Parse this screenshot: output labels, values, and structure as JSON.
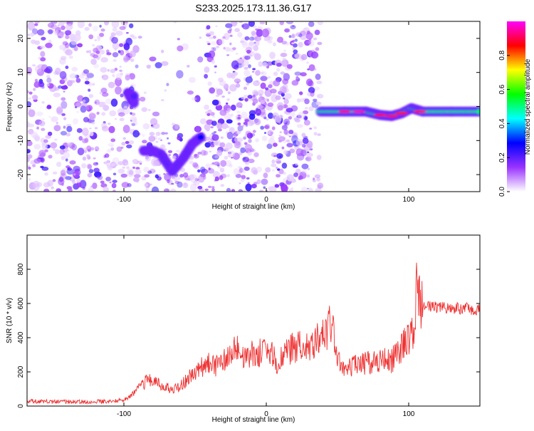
{
  "title": "S233.2025.173.11.36.G17",
  "chart_data": [
    {
      "type": "heatmap",
      "xlabel": "Height of straight line (km)",
      "ylabel": "Frequency (Hz)",
      "xlim": [
        -168,
        150
      ],
      "ylim": [
        -25,
        25
      ],
      "xticks": [
        -100,
        0,
        100
      ],
      "yticks": [
        -20,
        -10,
        0,
        10,
        20
      ],
      "colorbar": {
        "label": "Normalized spectral amplitude",
        "range": [
          0,
          1
        ],
        "ticks": [
          0.0,
          0.2,
          0.4,
          0.6,
          0.8
        ],
        "colormap": [
          "#ffffff",
          "#9933ff",
          "#0000ff",
          "#00ffff",
          "#00ff00",
          "#ffff00",
          "#ff0000",
          "#ff00ff"
        ]
      },
      "features": [
        {
          "type": "noise",
          "x": [
            -168,
            38
          ],
          "y": [
            -25,
            25
          ],
          "amplitude": 0.15
        },
        {
          "type": "ridge",
          "points": [
            [
              -93,
              1
            ],
            [
              -97,
              4
            ],
            [
              -93,
              3
            ]
          ],
          "amplitude": 0.3
        },
        {
          "type": "ridge",
          "points": [
            [
              -86,
              -13
            ],
            [
              -80,
              -13
            ],
            [
              -74,
              -14
            ],
            [
              -66,
              -19
            ],
            [
              -58,
              -15
            ],
            [
              -52,
              -11
            ],
            [
              -46,
              -9
            ]
          ],
          "amplitude": 0.4
        },
        {
          "type": "ridge",
          "points": [
            [
              38,
              -1.5
            ],
            [
              55,
              -1.5
            ],
            [
              70,
              -1.5
            ],
            [
              80,
              -2.5
            ],
            [
              88,
              -2.8
            ],
            [
              95,
              -2
            ],
            [
              102,
              -0.5
            ],
            [
              110,
              -1.5
            ],
            [
              130,
              -1.5
            ],
            [
              150,
              -1.5
            ]
          ],
          "amplitude": 0.95
        }
      ]
    },
    {
      "type": "line",
      "xlabel": "Height of straight line (km)",
      "ylabel": "SNR (10 * v/v)",
      "xlim": [
        -168,
        150
      ],
      "ylim": [
        0,
        1000
      ],
      "xticks": [
        -100,
        0,
        100
      ],
      "yticks": [
        0,
        200,
        400,
        600,
        800
      ],
      "color": "#ee3333",
      "x": [
        -168,
        -150,
        -130,
        -110,
        -100,
        -95,
        -90,
        -85,
        -82,
        -80,
        -75,
        -70,
        -65,
        -60,
        -55,
        -50,
        -45,
        -40,
        -35,
        -30,
        -25,
        -22,
        -20,
        -18,
        -15,
        -10,
        -5,
        0,
        5,
        8,
        10,
        15,
        20,
        25,
        30,
        35,
        40,
        43,
        45,
        48,
        50,
        55,
        60,
        65,
        70,
        75,
        80,
        85,
        88,
        90,
        95,
        98,
        100,
        102,
        104,
        105,
        106,
        108,
        110,
        120,
        130,
        140,
        150
      ],
      "y": [
        30,
        25,
        25,
        28,
        35,
        60,
        100,
        140,
        160,
        150,
        130,
        110,
        95,
        120,
        160,
        200,
        230,
        250,
        230,
        260,
        300,
        320,
        350,
        300,
        280,
        300,
        310,
        320,
        300,
        180,
        280,
        330,
        350,
        360,
        370,
        380,
        400,
        440,
        470,
        380,
        300,
        190,
        230,
        250,
        250,
        260,
        260,
        270,
        260,
        290,
        340,
        370,
        380,
        420,
        500,
        560,
        800,
        620,
        580,
        580,
        575,
        570,
        565
      ]
    }
  ]
}
